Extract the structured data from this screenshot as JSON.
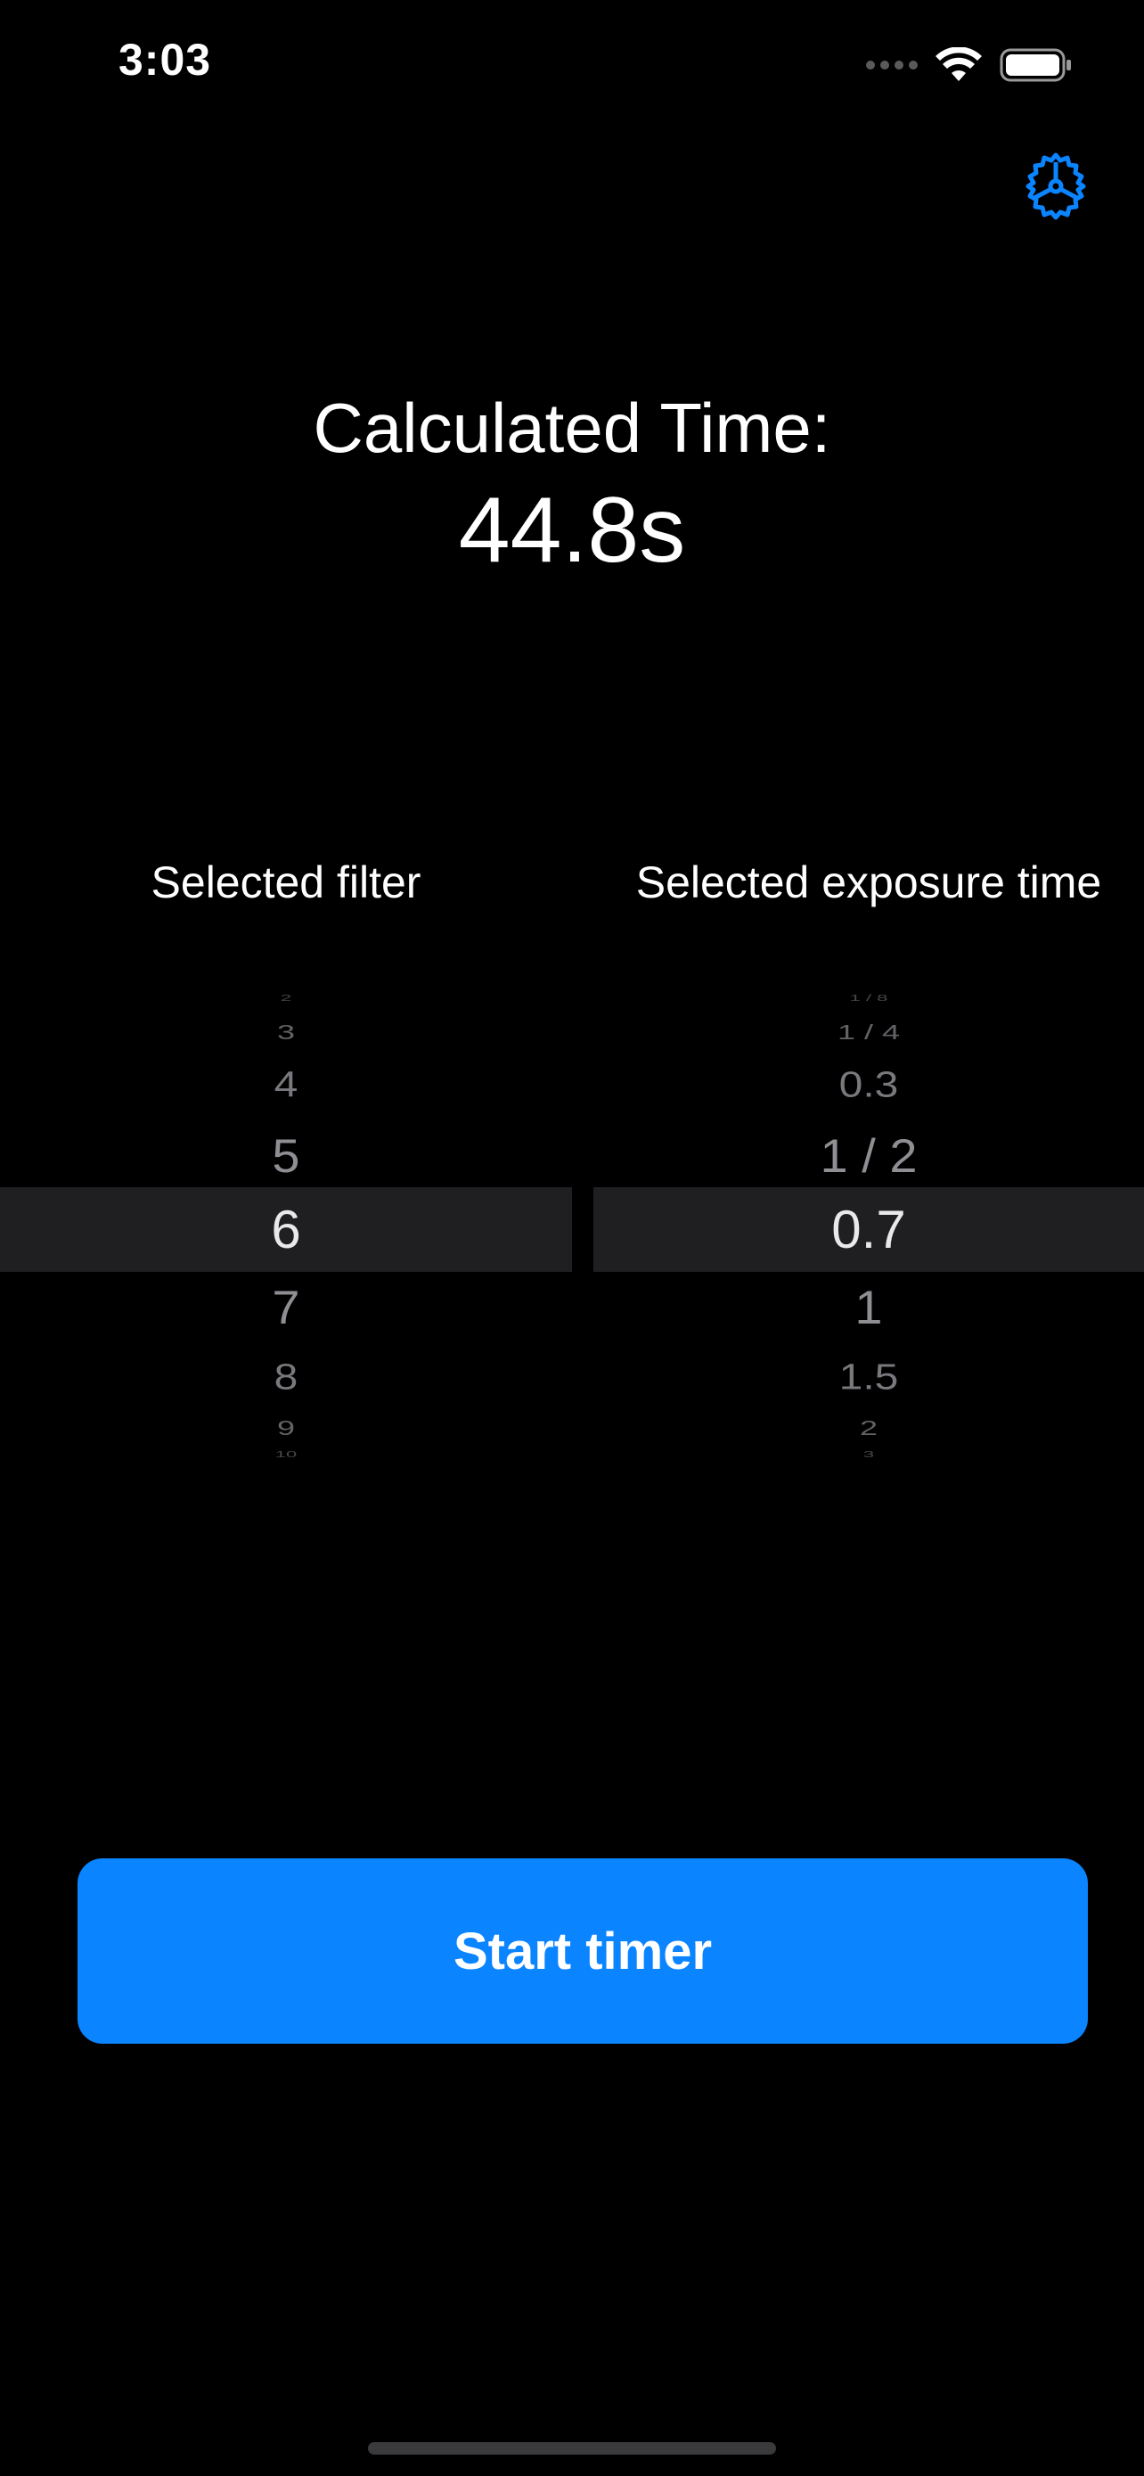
{
  "status_bar": {
    "time": "3:03",
    "icons": [
      "cellular-signal-icon",
      "wifi-icon",
      "battery-icon"
    ]
  },
  "header": {
    "settings_icon": "gear-icon"
  },
  "result": {
    "label": "Calculated Time:",
    "value": "44.8s"
  },
  "filter_picker": {
    "title": "Selected filter",
    "items": [
      "2",
      "3",
      "4",
      "5",
      "6",
      "7",
      "8",
      "9",
      "10"
    ],
    "selected": "6"
  },
  "exposure_picker": {
    "title": "Selected exposure time",
    "items": [
      "1 / 8",
      "1 / 4",
      "0.3",
      "1 / 2",
      "0.7",
      "1",
      "1.5",
      "2",
      "3"
    ],
    "selected": "0.7"
  },
  "actions": {
    "start_label": "Start timer"
  },
  "colors": {
    "accent": "#0a84ff",
    "background": "#000000",
    "selection_band": "#1f1f21"
  }
}
